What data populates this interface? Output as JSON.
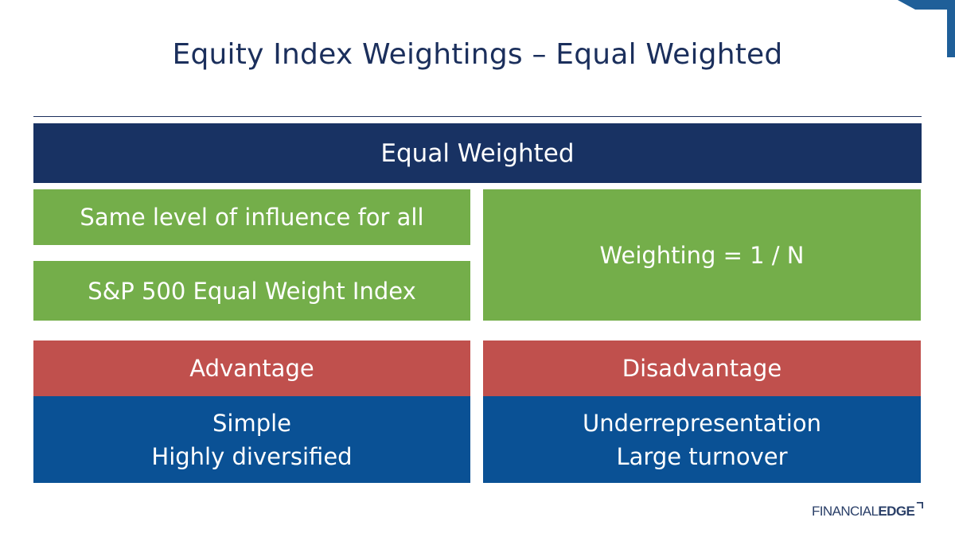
{
  "slide": {
    "title": "Equity Index Weightings – Equal Weighted",
    "header": "Equal Weighted",
    "green_boxes": [
      "Same level of influence for all",
      "S&P 500 Equal Weight Index",
      "Weighting = 1 / N"
    ],
    "advantage": {
      "label": "Advantage",
      "items": [
        "Simple",
        "Highly diversified"
      ]
    },
    "disadvantage": {
      "label": "Disadvantage",
      "items": [
        "Underrepresentation",
        "Large turnover"
      ]
    }
  },
  "logo": {
    "text_light": "FINANCIAL",
    "text_bold": "EDGE"
  },
  "colors": {
    "navy": "#183263",
    "green": "#74ae4a",
    "red": "#c0504d",
    "blue": "#0a5195"
  }
}
